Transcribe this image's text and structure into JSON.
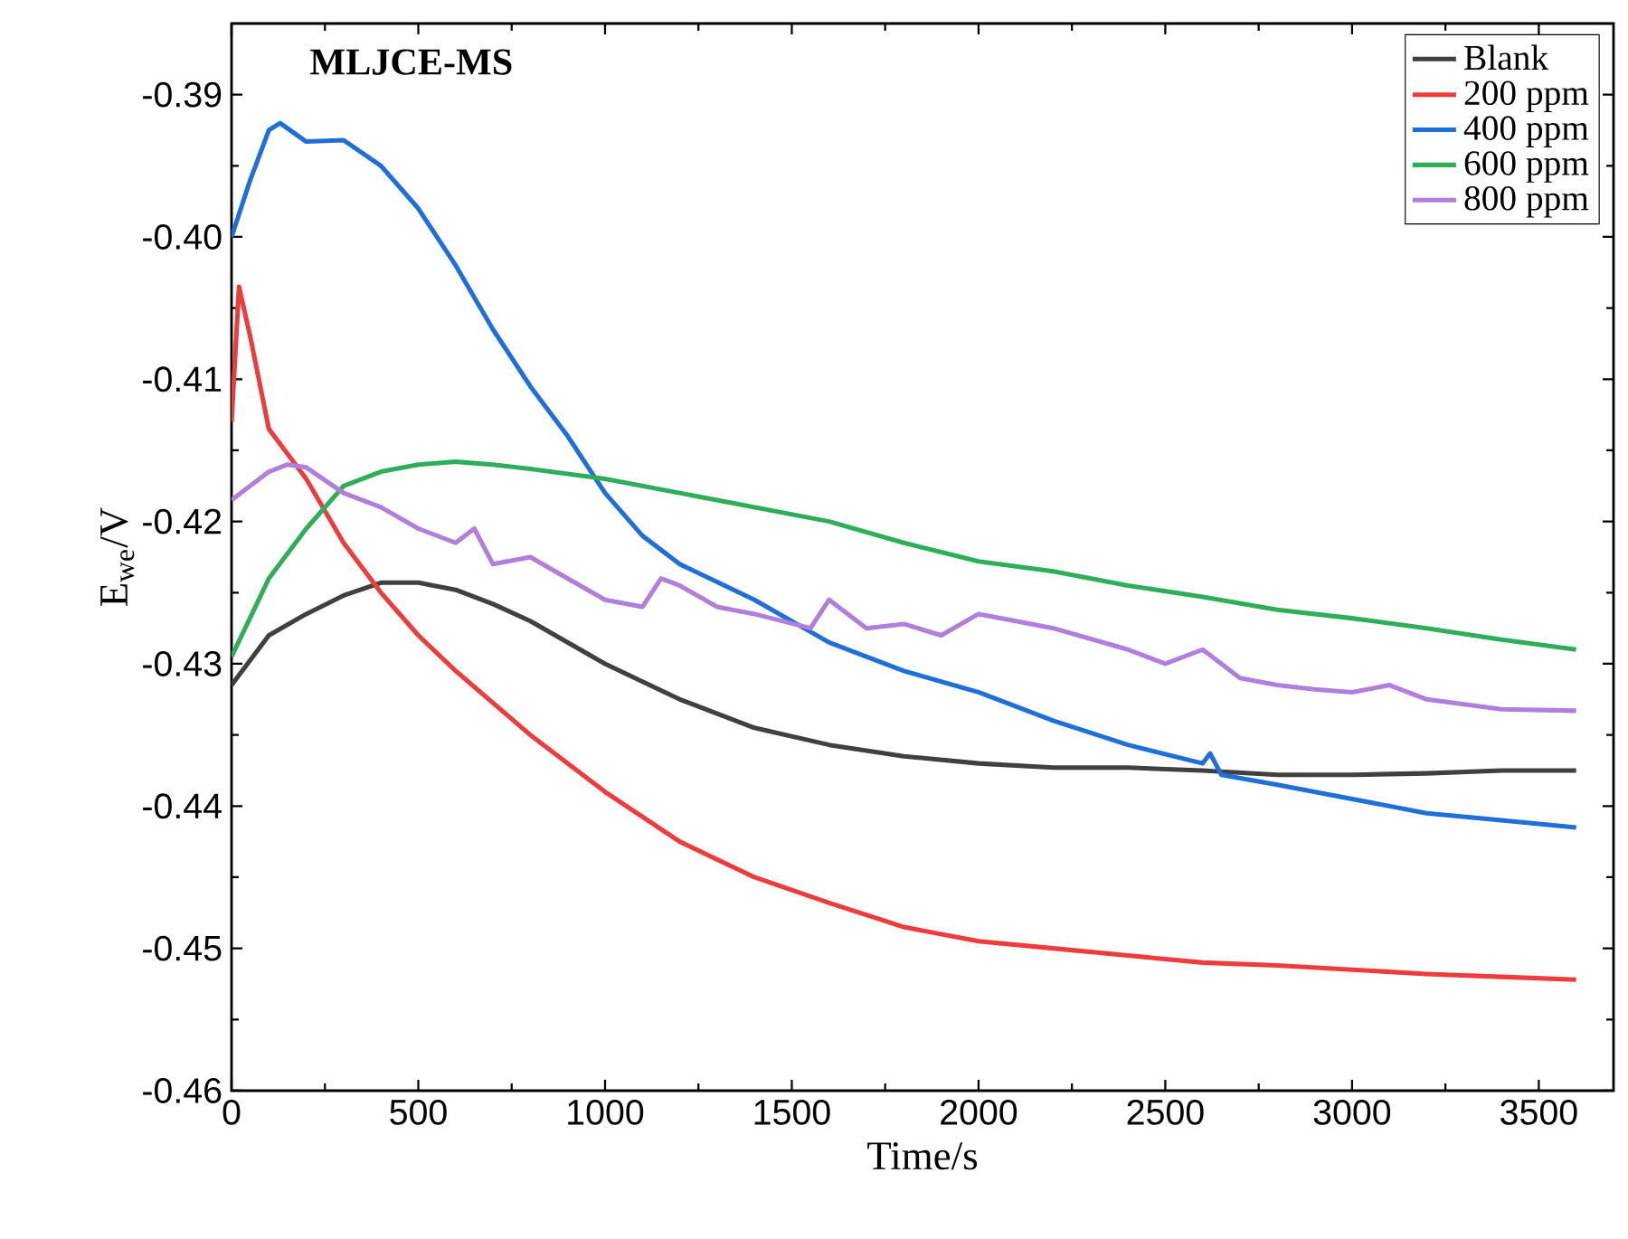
{
  "chart_data": {
    "type": "line",
    "title": "**MLJCE-MS**",
    "xlabel": "Time/s",
    "ylabel": "E$_{we}$/V",
    "xlim": [
      0,
      3700
    ],
    "ylim": [
      -0.46,
      -0.385
    ],
    "xticks": [
      0,
      500,
      1000,
      1500,
      2000,
      2500,
      3000,
      3500
    ],
    "yticks": [
      -0.46,
      -0.45,
      -0.44,
      -0.43,
      -0.42,
      -0.41,
      {
        "value": -0.4,
        "label": "-0.40"
      },
      -0.39
    ],
    "legend": "top right",
    "grid": false,
    "marker": "none",
    "line_style": "solid",
    "series": [
      {
        "name": "Blank",
        "color": "#404040",
        "x": [
          0,
          100,
          200,
          300,
          400,
          500,
          600,
          700,
          800,
          900,
          1000,
          1200,
          1400,
          1600,
          1800,
          2000,
          2200,
          2400,
          2600,
          2800,
          3000,
          3200,
          3400,
          3600
        ],
        "values": [
          -0.4315,
          -0.428,
          -0.4265,
          -0.4252,
          -0.4243,
          -0.4243,
          -0.4248,
          -0.4258,
          -0.427,
          -0.4285,
          -0.43,
          -0.4325,
          -0.4345,
          -0.4357,
          -0.4365,
          -0.437,
          -0.4373,
          -0.4373,
          -0.4375,
          -0.4378,
          -0.4378,
          -0.4377,
          -0.4375,
          -0.4375
        ]
      },
      {
        "name": "200 ppm",
        "color": "#ee3b3b",
        "x": [
          0,
          20,
          50,
          100,
          200,
          300,
          400,
          500,
          600,
          800,
          1000,
          1200,
          1400,
          1600,
          1800,
          2000,
          2200,
          2400,
          2600,
          2800,
          3000,
          3200,
          3400,
          3600
        ],
        "values": [
          -0.413,
          -0.4035,
          -0.407,
          -0.4135,
          -0.417,
          -0.4215,
          -0.425,
          -0.428,
          -0.4305,
          -0.435,
          -0.439,
          -0.4425,
          -0.445,
          -0.4468,
          -0.4485,
          -0.4495,
          -0.45,
          -0.4505,
          -0.451,
          -0.4512,
          -0.4515,
          -0.4518,
          -0.452,
          -0.4522
        ]
      },
      {
        "name": "400 ppm",
        "color": "#1f6fd8",
        "x": [
          0,
          50,
          100,
          130,
          200,
          300,
          400,
          500,
          600,
          700,
          800,
          900,
          1000,
          1100,
          1200,
          1400,
          1600,
          1800,
          2000,
          2200,
          2400,
          2600,
          2620,
          2650,
          2800,
          3000,
          3200,
          3400,
          3600
        ],
        "values": [
          -0.4,
          -0.396,
          -0.3925,
          -0.392,
          -0.3933,
          -0.3932,
          -0.395,
          -0.398,
          -0.402,
          -0.4065,
          -0.4105,
          -0.414,
          -0.418,
          -0.421,
          -0.423,
          -0.4255,
          -0.4285,
          -0.4305,
          -0.432,
          -0.434,
          -0.4357,
          -0.437,
          -0.4363,
          -0.4378,
          -0.4385,
          -0.4395,
          -0.4405,
          -0.441,
          -0.4415
        ]
      },
      {
        "name": "600 ppm",
        "color": "#2fae5a",
        "x": [
          0,
          100,
          200,
          300,
          400,
          500,
          600,
          700,
          800,
          1000,
          1200,
          1400,
          1600,
          1800,
          2000,
          2200,
          2400,
          2600,
          2800,
          3000,
          3200,
          3400,
          3600
        ],
        "values": [
          -0.4295,
          -0.424,
          -0.4205,
          -0.4175,
          -0.4165,
          -0.416,
          -0.4158,
          -0.416,
          -0.4163,
          -0.417,
          -0.418,
          -0.419,
          -0.42,
          -0.4215,
          -0.4228,
          -0.4235,
          -0.4245,
          -0.4253,
          -0.4262,
          -0.4268,
          -0.4275,
          -0.4283,
          -0.429
        ]
      },
      {
        "name": "800 ppm",
        "color": "#b07fdd",
        "x": [
          0,
          100,
          150,
          200,
          300,
          400,
          500,
          600,
          650,
          700,
          800,
          900,
          1000,
          1100,
          1150,
          1200,
          1300,
          1400,
          1550,
          1600,
          1700,
          1800,
          1900,
          2000,
          2100,
          2200,
          2400,
          2500,
          2600,
          2700,
          2800,
          2900,
          3000,
          3100,
          3200,
          3400,
          3600
        ],
        "values": [
          -0.4185,
          -0.4165,
          -0.416,
          -0.4162,
          -0.418,
          -0.419,
          -0.4205,
          -0.4215,
          -0.4205,
          -0.423,
          -0.4225,
          -0.424,
          -0.4255,
          -0.426,
          -0.424,
          -0.4245,
          -0.426,
          -0.4265,
          -0.4275,
          -0.4255,
          -0.4275,
          -0.4272,
          -0.428,
          -0.4265,
          -0.427,
          -0.4275,
          -0.429,
          -0.43,
          -0.429,
          -0.431,
          -0.4315,
          -0.4318,
          -0.432,
          -0.4315,
          -0.4325,
          -0.4332,
          -0.4333
        ]
      }
    ]
  }
}
